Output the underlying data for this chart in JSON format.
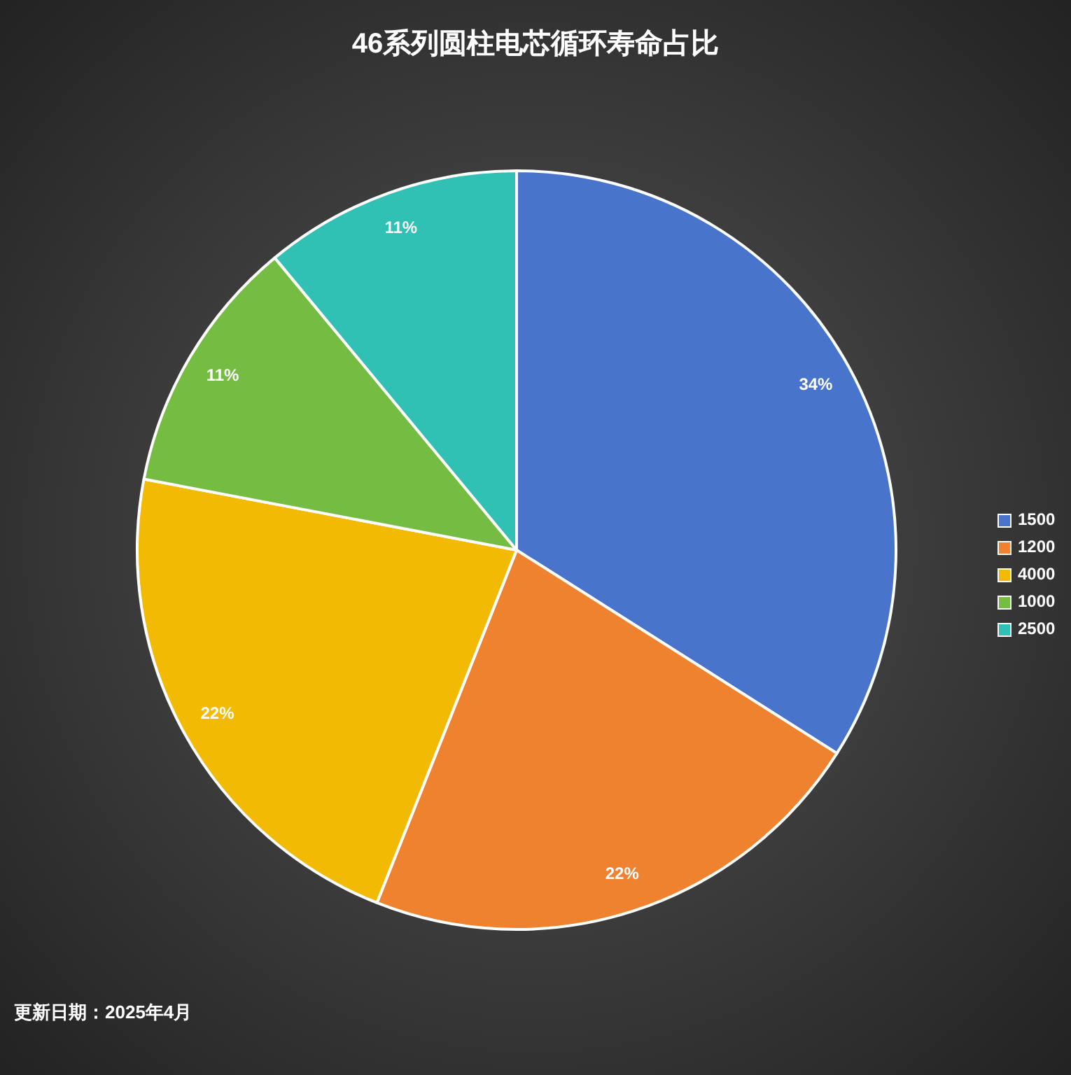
{
  "chart_data": {
    "type": "pie",
    "title": "46系列圆柱电芯循环寿命占比",
    "categories": [
      "1500",
      "1200",
      "4000",
      "1000",
      "2500"
    ],
    "values": [
      34,
      22,
      22,
      11,
      11
    ],
    "colors": [
      "#4874cb",
      "#ee822f",
      "#f2ba02",
      "#75bd42",
      "#30c0b4"
    ],
    "value_labels": [
      "34%",
      "22%",
      "22%",
      "11%",
      "11%"
    ],
    "legend": "right",
    "annotations": [
      "更新日期：2025年4月"
    ]
  }
}
